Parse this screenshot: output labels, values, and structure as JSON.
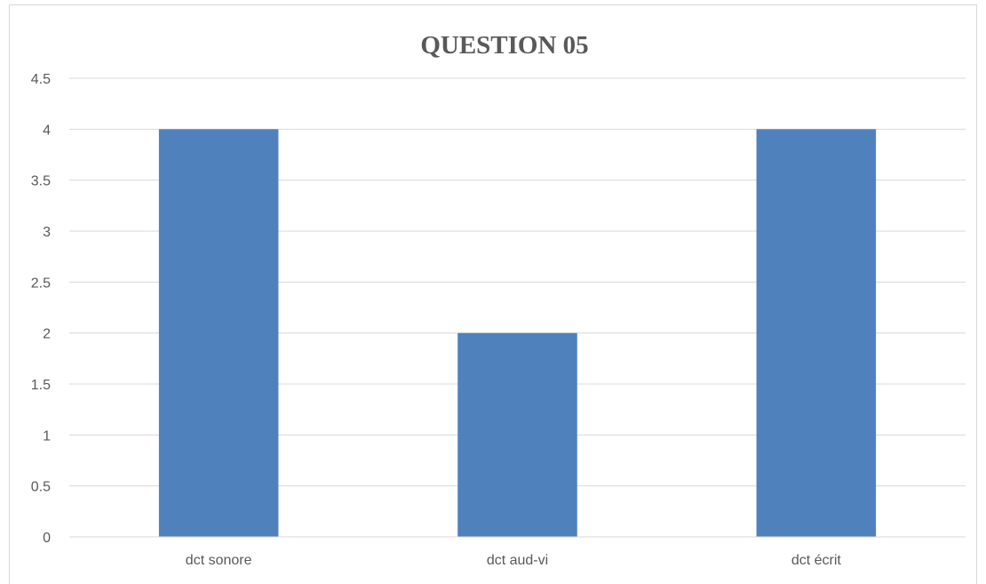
{
  "chart_data": {
    "type": "bar",
    "title": "QUESTION 05",
    "categories": [
      "dct sonore",
      "dct aud-vi",
      "dct écrit"
    ],
    "values": [
      4,
      2,
      4
    ],
    "xlabel": "",
    "ylabel": "",
    "ylim": [
      0,
      4.5
    ],
    "yticks": [
      "0",
      "0.5",
      "1",
      "1.5",
      "2",
      "2.5",
      "3",
      "3.5",
      "4",
      "4.5"
    ],
    "grid": true,
    "legend": "none",
    "colors": {
      "bar": "#4f81bd",
      "gridline": "#d9d9d9",
      "text": "#595959"
    }
  }
}
